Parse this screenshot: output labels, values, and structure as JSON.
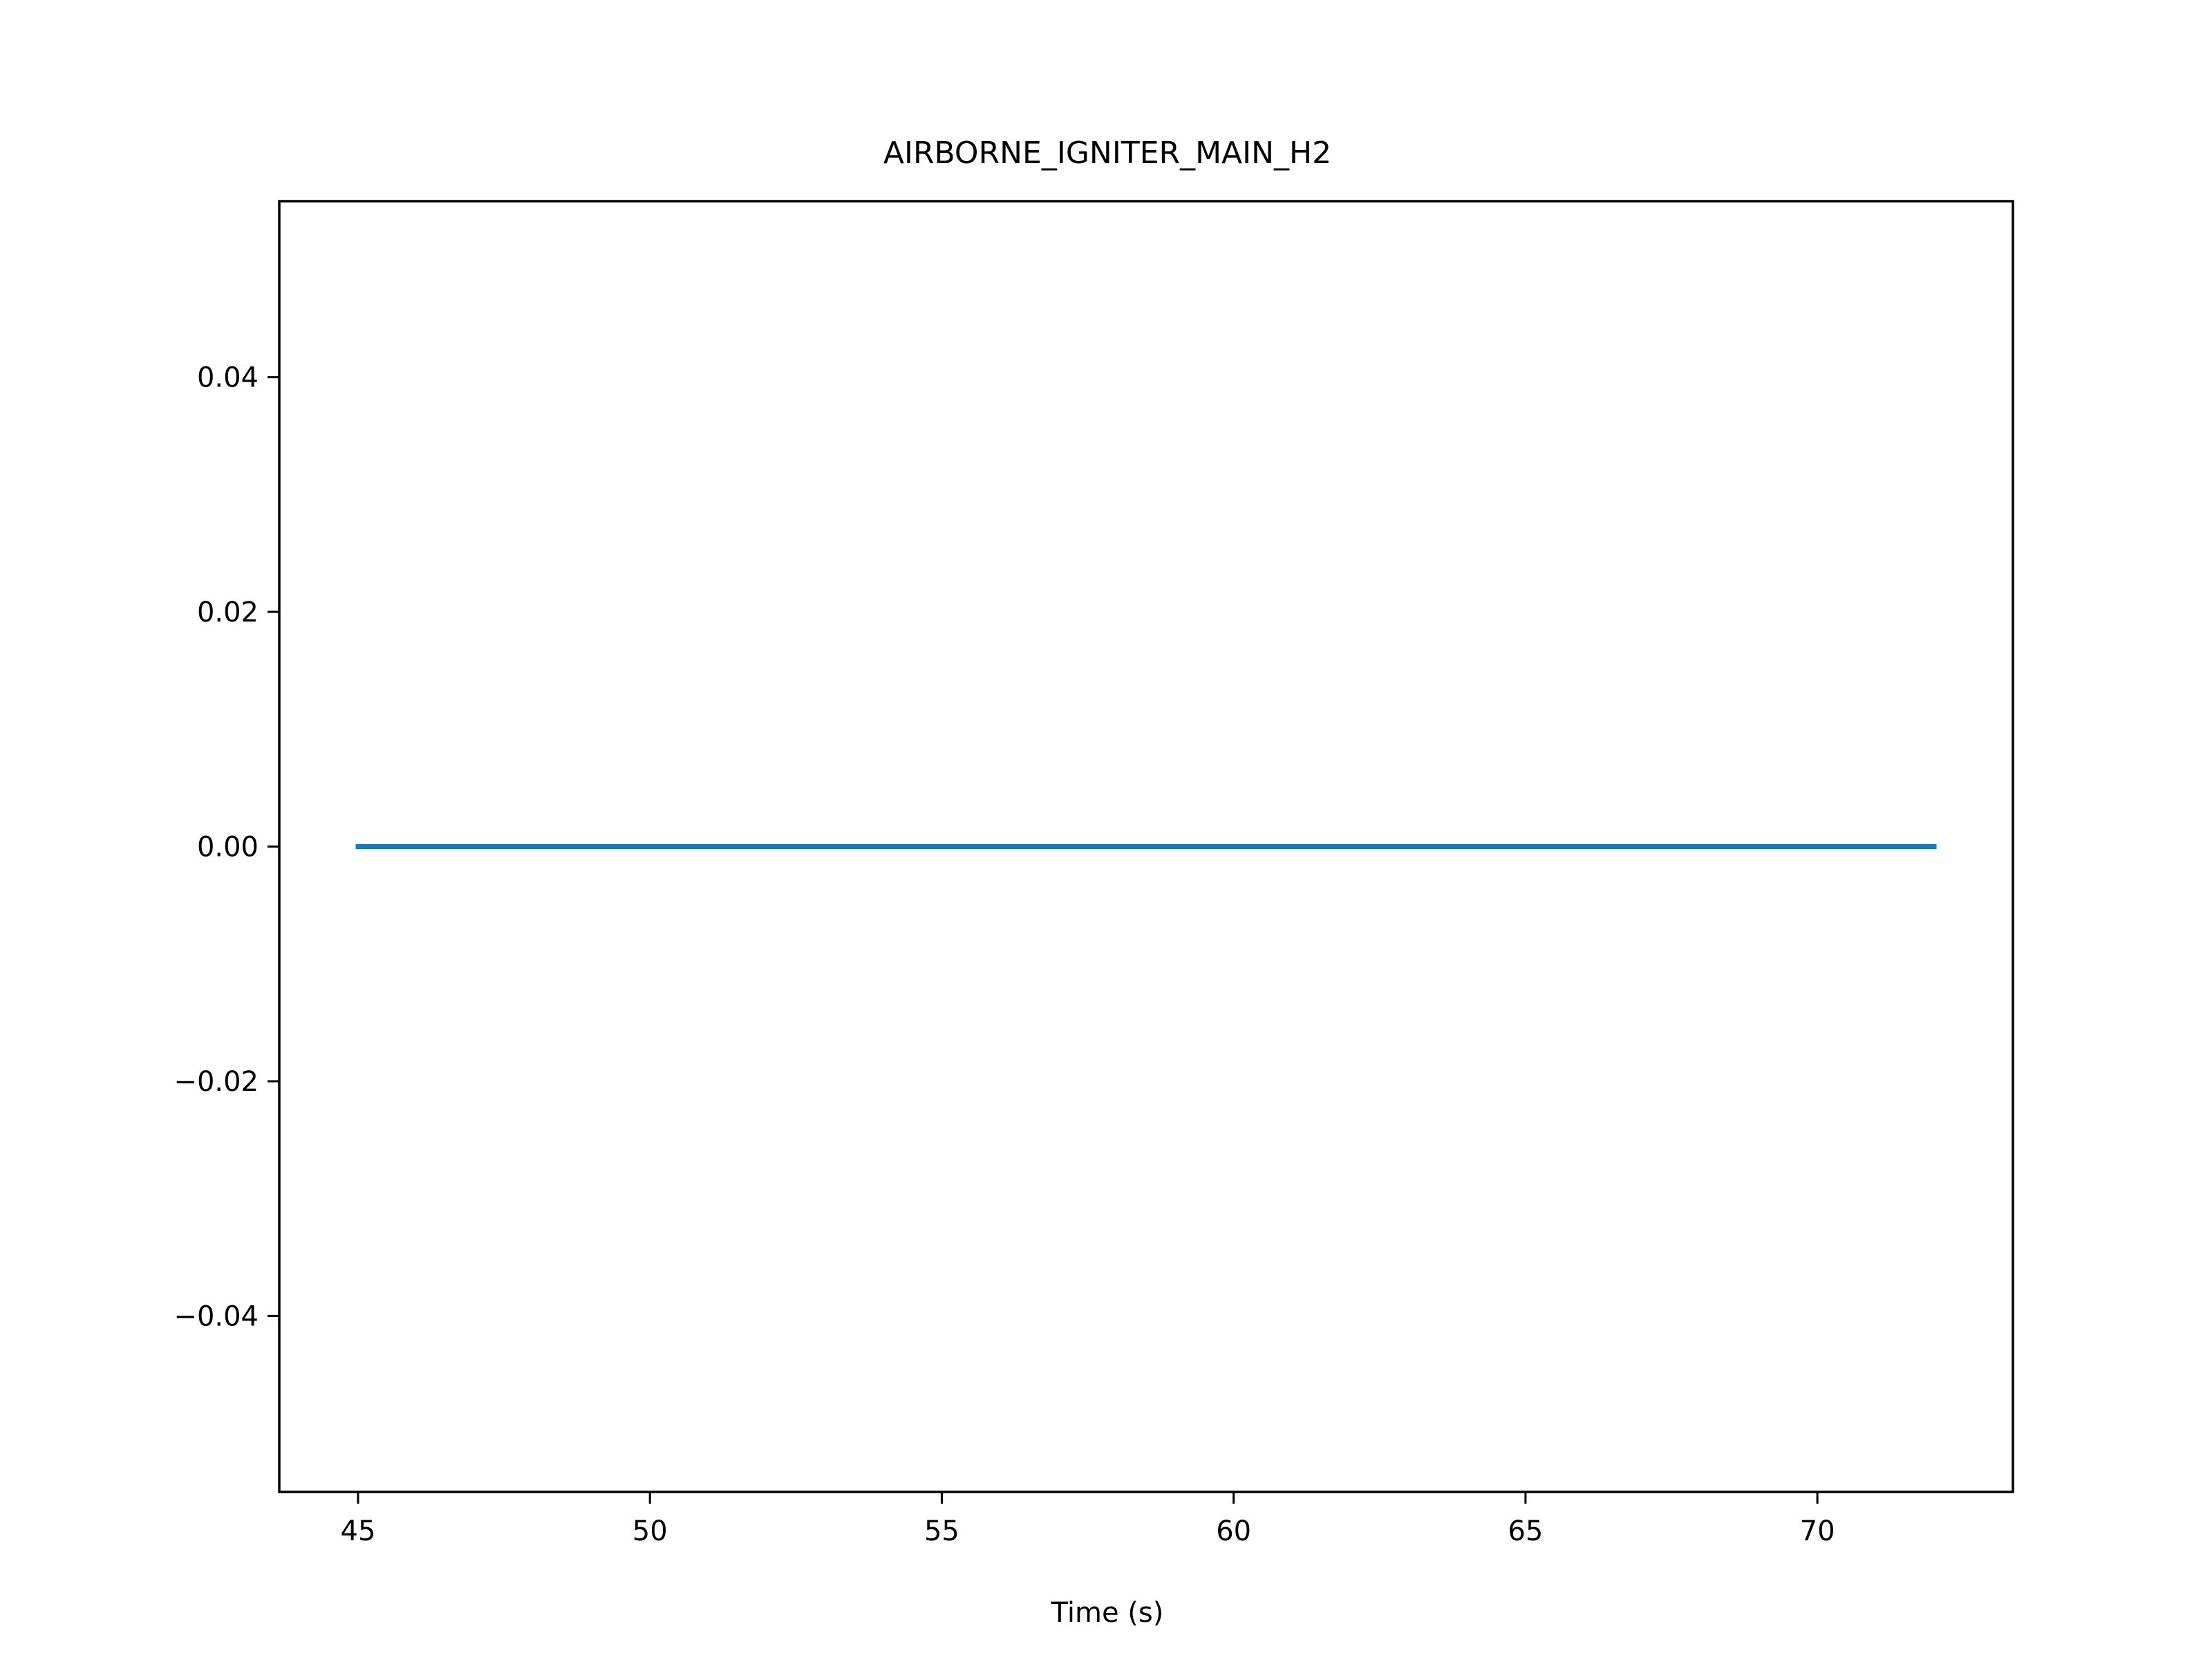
{
  "chart_data": {
    "type": "line",
    "title": "AIRBORNE_IGNITER_MAIN_H2",
    "xlabel": "Time (s)",
    "ylabel": "",
    "xlim": [
      43.65,
      73.35
    ],
    "ylim": [
      -0.055,
      0.055
    ],
    "x_ticks": [
      45,
      50,
      55,
      60,
      65,
      70
    ],
    "x_tick_labels": [
      "45",
      "50",
      "55",
      "60",
      "65",
      "70"
    ],
    "y_ticks": [
      -0.04,
      -0.02,
      0.0,
      0.02,
      0.04
    ],
    "y_tick_labels": [
      "−0.04",
      "−0.02",
      "0.00",
      "0.02",
      "0.04"
    ],
    "grid": false,
    "legend": "none",
    "series": [
      {
        "color": "#1f77b4",
        "x": [
          45,
          72
        ],
        "y": [
          0.0,
          0.0
        ]
      }
    ]
  }
}
